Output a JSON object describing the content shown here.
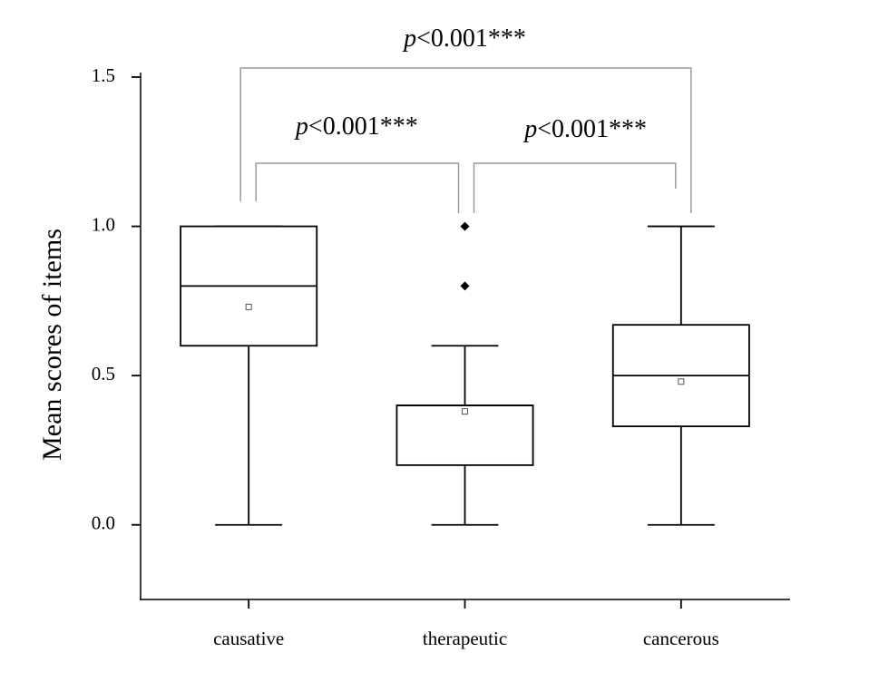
{
  "chart_data": {
    "type": "box",
    "y_label": "Mean scores of items",
    "categories": [
      "causative",
      "therapeutic",
      "cancerous"
    ],
    "boxes": [
      {
        "min": 0,
        "q1": 0.6,
        "median": 0.8,
        "q3": 1.0,
        "max": 1.0,
        "mean": 0.73,
        "outliers": []
      },
      {
        "min": 0,
        "q1": 0.2,
        "median": 0.4,
        "q3": 0.4,
        "max": 0.6,
        "mean": 0.38,
        "outliers": [
          0.8,
          1.0
        ]
      },
      {
        "min": 0,
        "q1": 0.33,
        "median": 0.5,
        "q3": 0.67,
        "max": 1.0,
        "mean": 0.48,
        "outliers": []
      }
    ],
    "ylim": [
      -0.25,
      1.5
    ],
    "yticks": [
      {
        "value": 0,
        "label": "0.0"
      },
      0.5,
      {
        "value": 1,
        "label": "1.0"
      },
      1.5
    ],
    "annotations": [
      {
        "italic": "p",
        "text": "<0.001***"
      },
      {
        "italic": "p",
        "text": "<0.001***"
      },
      {
        "italic": "p",
        "text": "<0.001***"
      }
    ]
  }
}
